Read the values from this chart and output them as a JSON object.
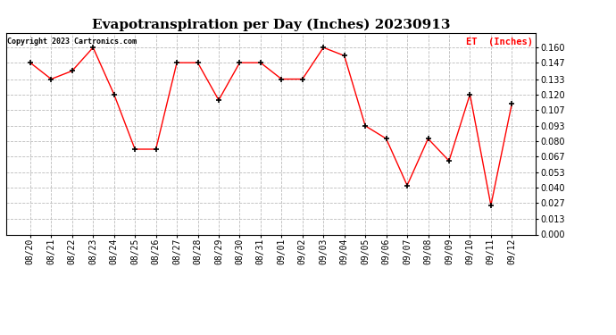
{
  "title": "Evapotranspiration per Day (Inches) 20230913",
  "copyright": "Copyright 2023 Cartronics.com",
  "legend_label": "ET  (Inches)",
  "dates": [
    "08/20",
    "08/21",
    "08/22",
    "08/23",
    "08/24",
    "08/25",
    "08/26",
    "08/27",
    "08/28",
    "08/29",
    "08/30",
    "08/31",
    "09/01",
    "09/02",
    "09/03",
    "09/04",
    "09/05",
    "09/06",
    "09/07",
    "09/08",
    "09/09",
    "09/10",
    "09/11",
    "09/12"
  ],
  "values": [
    0.147,
    0.133,
    0.14,
    0.16,
    0.12,
    0.073,
    0.073,
    0.147,
    0.147,
    0.115,
    0.147,
    0.147,
    0.133,
    0.133,
    0.16,
    0.153,
    0.093,
    0.082,
    0.042,
    0.082,
    0.063,
    0.12,
    0.025,
    0.112
  ],
  "line_color": "red",
  "marker": "+",
  "marker_color": "black",
  "ylim": [
    0.0,
    0.172
  ],
  "yticks": [
    0.0,
    0.013,
    0.027,
    0.04,
    0.053,
    0.067,
    0.08,
    0.093,
    0.107,
    0.12,
    0.133,
    0.147,
    0.16
  ],
  "bg_color": "white",
  "grid_color": "#bbbbbb",
  "title_fontsize": 11,
  "tick_fontsize": 7,
  "legend_color": "red",
  "copyright_color": "black"
}
